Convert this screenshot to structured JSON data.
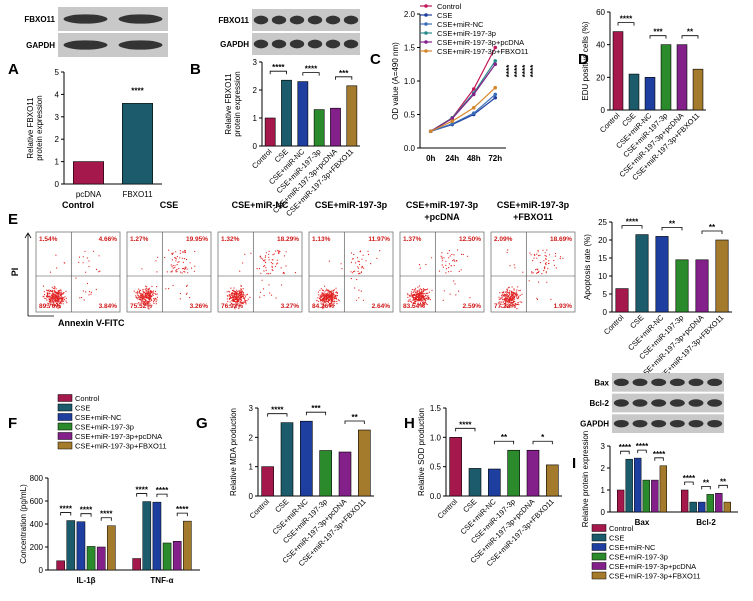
{
  "chart_data": [
    {
      "panel": "A",
      "type": "bar",
      "blot_labels": [
        "FBXO11",
        "GAPDH"
      ],
      "ylabel": [
        "Relative FBXO11",
        "protein expression"
      ],
      "categories": [
        "pcDNA",
        "FBXO11"
      ],
      "values": [
        1,
        3.6
      ],
      "colors": [
        "#a4184c",
        "#1b5b6b"
      ],
      "ylim": [
        0,
        5
      ],
      "yticks": [
        0,
        1,
        2,
        3,
        4,
        5
      ],
      "annotations": [
        "****"
      ]
    },
    {
      "panel": "B",
      "type": "bar",
      "blot_labels": [
        "FBXO11",
        "GAPDH"
      ],
      "ylabel": [
        "Relative FBXO11",
        "protein expression"
      ],
      "categories": [
        "Control",
        "CSE",
        "CSE+miR-NC",
        "CSE+miR-197-3p",
        "CSE+miR-197-3p+pcDNA",
        "CSE+miR-197-3p+FBXO11"
      ],
      "values": [
        1,
        2.35,
        2.3,
        1.3,
        1.35,
        2.15
      ],
      "colors": [
        "#a4184c",
        "#1b5b6b",
        "#1e3fa0",
        "#2b8a2b",
        "#84208a",
        "#a47a2c"
      ],
      "ylim": [
        0,
        3
      ],
      "yticks": [
        0,
        1,
        2,
        3
      ],
      "annotations": [
        "****",
        "****",
        "***"
      ]
    },
    {
      "panel": "C",
      "type": "line",
      "ylabel": [
        "OD value (A=490 nm)"
      ],
      "categories": [
        "0h",
        "24h",
        "48h",
        "72h"
      ],
      "series": [
        {
          "name": "Control",
          "color": "#c2185b",
          "values": [
            0.25,
            0.45,
            0.88,
            1.5
          ]
        },
        {
          "name": "CSE",
          "color": "#1e3fa0",
          "values": [
            0.25,
            0.35,
            0.5,
            0.75
          ]
        },
        {
          "name": "CSE+miR-NC",
          "color": "#3a6fb5",
          "values": [
            0.25,
            0.36,
            0.52,
            0.8
          ]
        },
        {
          "name": "CSE+miR-197-3p",
          "color": "#2a8a8a",
          "values": [
            0.25,
            0.45,
            0.82,
            1.3
          ]
        },
        {
          "name": "CSE+miR-197-3p+pcDNA",
          "color": "#84208a",
          "values": [
            0.25,
            0.44,
            0.8,
            1.25
          ]
        },
        {
          "name": "CSE+miR-197-3p+FBXO11",
          "color": "#d4862a",
          "values": [
            0.25,
            0.4,
            0.6,
            0.9
          ]
        }
      ],
      "ylim": [
        0,
        2
      ],
      "yticks": [
        {
          "value": 0,
          "label": "0.0"
        },
        {
          "value": 0.5,
          "label": "0.5"
        },
        {
          "value": 1,
          "label": "1.0"
        },
        {
          "value": 1.5,
          "label": "1.5"
        },
        {
          "value": 2,
          "label": "2.0"
        }
      ],
      "annotations": [
        "****",
        "****",
        "****",
        "****"
      ]
    },
    {
      "panel": "D",
      "type": "bar",
      "ylabel": [
        "EDU positive cells (%)"
      ],
      "categories": [
        "Control",
        "CSE",
        "CSE+miR-NC",
        "CSE+miR-197-3p",
        "CSE+miR-197-3p+pcDNA",
        "CSE+miR-197-3p+FBXO11"
      ],
      "values": [
        48,
        22,
        20,
        40,
        40,
        25
      ],
      "colors": [
        "#a4184c",
        "#1b5b6b",
        "#1e3fa0",
        "#2b8a2b",
        "#84208a",
        "#a47a2c"
      ],
      "ylim": [
        0,
        60
      ],
      "yticks": [
        0,
        20,
        40,
        60
      ],
      "annotations": [
        "****",
        "***",
        "**"
      ]
    },
    {
      "panel": "E",
      "type": "flow",
      "xlabel": "Annexin V-FITC",
      "ylabel": "PI",
      "plots": [
        {
          "title": [
            "Control"
          ],
          "values": [
            1.54,
            4.66,
            89.76,
            3.84
          ],
          "value_labels": [
            "1.54%",
            "4.66%",
            "89.76%",
            "3.84%"
          ]
        },
        {
          "title": [
            "CSE"
          ],
          "values": [
            1.27,
            19.95,
            75.52,
            3.26
          ],
          "value_labels": [
            "1.27%",
            "19.95%",
            "75.52%",
            "3.26%"
          ]
        },
        {
          "title": [
            "CSE+miR-NC"
          ],
          "values": [
            1.32,
            18.29,
            76.92,
            3.27
          ],
          "value_labels": [
            "1.32%",
            "18.29%",
            "76.92%",
            "3.27%"
          ]
        },
        {
          "title": [
            "CSE+miR-197-3p"
          ],
          "values": [
            1.13,
            11.97,
            84.26,
            2.64
          ],
          "value_labels": [
            "1.13%",
            "11.97%",
            "84.26%",
            "2.64%"
          ]
        },
        {
          "title": [
            "CSE+miR-197-3p",
            "+pcDNA"
          ],
          "values": [
            1.37,
            12.5,
            83.54,
            2.59
          ],
          "value_labels": [
            "1.37%",
            "12.50%",
            "83.54%",
            "2.59%"
          ]
        },
        {
          "title": [
            "CSE+miR-197-3p",
            "+FBXO11"
          ],
          "values": [
            2.09,
            18.69,
            77.22,
            1.93
          ],
          "value_labels": [
            "2.09%",
            "18.69%",
            "77.22%",
            "1.93%"
          ]
        }
      ]
    },
    {
      "type": "bar",
      "ylabel": [
        "Apoptosis rate (%)"
      ],
      "categories": [
        "Control",
        "CSE",
        "CSE+miR-NC",
        "CSE+miR-197-3p",
        "CSE+miR-197-3p+pcDNA",
        "CSE+miR-197-3p+FBXO11"
      ],
      "values": [
        6.5,
        21.5,
        21,
        14.5,
        14.5,
        20
      ],
      "colors": [
        "#a4184c",
        "#1b5b6b",
        "#1e3fa0",
        "#2b8a2b",
        "#84208a",
        "#a47a2c"
      ],
      "ylim": [
        0,
        25
      ],
      "yticks": [
        0,
        5,
        10,
        15,
        20,
        25
      ],
      "annotations": [
        "****",
        "**",
        "**"
      ]
    },
    {
      "panel": "F",
      "type": "grouped_bar",
      "ylabel": [
        "Concentration (pg/mL)"
      ],
      "categories": [
        "IL-1β",
        "TNF-α"
      ],
      "series": [
        {
          "name": "Control",
          "color": "#a4184c",
          "values": [
            80,
            100
          ]
        },
        {
          "name": "CSE",
          "color": "#1b5b6b",
          "values": [
            430,
            595
          ]
        },
        {
          "name": "CSE+miR-NC",
          "color": "#1e3fa0",
          "values": [
            420,
            590
          ]
        },
        {
          "name": "CSE+miR-197-3p",
          "color": "#2b8a2b",
          "values": [
            205,
            235
          ]
        },
        {
          "name": "CSE+miR-197-3p+pcDNA",
          "color": "#84208a",
          "values": [
            200,
            250
          ]
        },
        {
          "name": "CSE+miR-197-3p+FBXO11",
          "color": "#a47a2c",
          "values": [
            385,
            425
          ]
        }
      ],
      "ylim": [
        0,
        800
      ],
      "yticks": [
        0,
        200,
        400,
        600,
        800
      ],
      "annotations": [
        "****",
        "****",
        "****",
        "****",
        "****",
        "****"
      ]
    },
    {
      "panel": "G",
      "type": "bar",
      "ylabel": [
        "Relative MDA production"
      ],
      "categories": [
        "Control",
        "CSE",
        "CSE+miR-NC",
        "CSE+miR-197-3p",
        "CSE+miR-197-3p+pcDNA",
        "CSE+miR-197-3p+FBXO11"
      ],
      "values": [
        1,
        2.5,
        2.55,
        1.55,
        1.5,
        2.25
      ],
      "colors": [
        "#a4184c",
        "#1b5b6b",
        "#1e3fa0",
        "#2b8a2b",
        "#84208a",
        "#a47a2c"
      ],
      "ylim": [
        0,
        3
      ],
      "yticks": [
        0,
        1,
        2,
        3
      ],
      "annotations": [
        "****",
        "***",
        "**"
      ]
    },
    {
      "panel": "H",
      "type": "bar",
      "ylabel": [
        "Relative SOD production"
      ],
      "categories": [
        "Control",
        "CSE",
        "CSE+miR-NC",
        "CSE+miR-197-3p",
        "CSE+miR-197-3p+pcDNA",
        "CSE+miR-197-3p+FBXO11"
      ],
      "values": [
        1,
        0.47,
        0.46,
        0.78,
        0.78,
        0.53
      ],
      "colors": [
        "#a4184c",
        "#1b5b6b",
        "#1e3fa0",
        "#2b8a2b",
        "#84208a",
        "#a47a2c"
      ],
      "ylim": [
        0,
        1.5
      ],
      "yticks": [
        {
          "value": 0,
          "label": "0.0"
        },
        {
          "value": 0.5,
          "label": "0.5"
        },
        {
          "value": 1,
          "label": "1.0"
        },
        {
          "value": 1.5,
          "label": "1.5"
        }
      ],
      "annotations": [
        "****",
        "**",
        "*"
      ]
    },
    {
      "panel": "I",
      "type": "grouped_bar",
      "blot_labels": [
        "Bax",
        "Bcl-2",
        "GAPDH"
      ],
      "ylabel": [
        "Relative protein expression"
      ],
      "categories": [
        "Bax",
        "Bcl-2"
      ],
      "series": [
        {
          "name": "Control",
          "color": "#a4184c",
          "values": [
            1,
            1
          ]
        },
        {
          "name": "CSE",
          "color": "#1b5b6b",
          "values": [
            2.4,
            0.45
          ]
        },
        {
          "name": "CSE+miR-NC",
          "color": "#1e3fa0",
          "values": [
            2.45,
            0.45
          ]
        },
        {
          "name": "CSE+miR-197-3p",
          "color": "#2b8a2b",
          "values": [
            1.45,
            0.8
          ]
        },
        {
          "name": "CSE+miR-197-3p+pcDNA",
          "color": "#84208a",
          "values": [
            1.45,
            0.85
          ]
        },
        {
          "name": "CSE+miR-197-3p+FBXO11",
          "color": "#a47a2c",
          "values": [
            2.1,
            0.45
          ]
        }
      ],
      "ylim": [
        0,
        3
      ],
      "yticks": [
        0,
        1,
        2,
        3
      ],
      "annotations": [
        "****",
        "****",
        "****",
        "****",
        "**",
        "**"
      ]
    }
  ]
}
